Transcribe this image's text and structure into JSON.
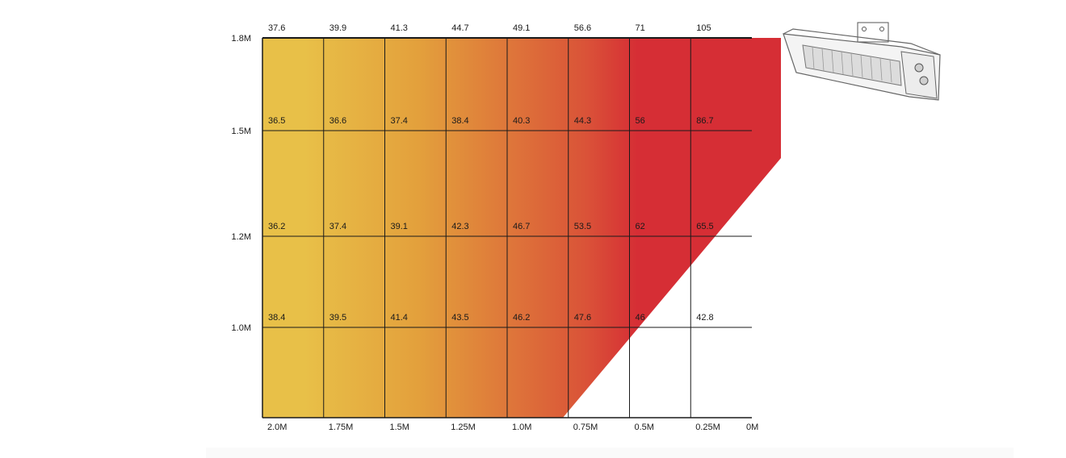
{
  "chart_data": {
    "type": "heatmap",
    "title": "",
    "xlabel": "",
    "ylabel": "",
    "x_tick_labels": [
      "2.0M",
      "1.75M",
      "1.5M",
      "1.25M",
      "1.0M",
      "0.75M",
      "0.5M",
      "0.25M",
      "0M"
    ],
    "y_tick_labels": [
      "1.8M",
      "1.5M",
      "1.2M",
      "1.0M"
    ],
    "x_ticks": [
      2.0,
      1.75,
      1.5,
      1.25,
      1.0,
      0.75,
      0.5,
      0.25,
      0.0
    ],
    "y_ticks": [
      1.8,
      1.5,
      1.2,
      1.0
    ],
    "xlim": [
      2.0,
      0.0
    ],
    "ylim": [
      0.7,
      1.8
    ],
    "rows": [
      {
        "height_label": "1.8M",
        "values": [
          "37.6",
          "39.9",
          "41.3",
          "44.7",
          "49.1",
          "56.6",
          "71",
          "105"
        ]
      },
      {
        "height_label": "1.5M",
        "values": [
          "36.5",
          "36.6",
          "37.4",
          "38.4",
          "40.3",
          "44.3",
          "56",
          "86.7"
        ]
      },
      {
        "height_label": "1.2M",
        "values": [
          "36.2",
          "37.4",
          "39.1",
          "42.3",
          "46.7",
          "53.5",
          "62",
          "65.5"
        ]
      },
      {
        "height_label": "1.0M",
        "values": [
          "38.4",
          "39.5",
          "41.4",
          "43.5",
          "46.2",
          "47.6",
          "46",
          "42.8"
        ]
      }
    ],
    "colors": {
      "cool": "#e8c048",
      "warm": "#d62e35",
      "grid": "#1a1a1a"
    },
    "heater_icon": "patio-heater-icon",
    "grid": true
  }
}
